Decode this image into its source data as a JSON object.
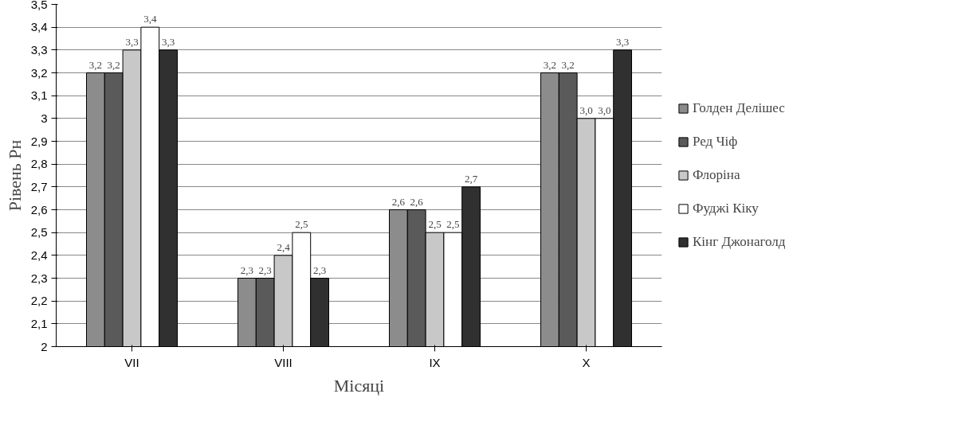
{
  "chart_data": {
    "type": "bar",
    "xlabel": "Місяці",
    "ylabel": "Рівень Рн",
    "categories": [
      "VII",
      "VIII",
      "IX",
      "X"
    ],
    "series": [
      {
        "name": "Голден Делішес",
        "color": "#8c8c8c",
        "values": [
          3.2,
          2.3,
          2.6,
          3.2
        ],
        "value_labels": [
          "3,2",
          "2,3",
          "2,6",
          "3,2"
        ]
      },
      {
        "name": "Ред Чіф",
        "color": "#5a5a5a",
        "values": [
          3.2,
          2.3,
          2.6,
          3.2
        ],
        "value_labels": [
          "3,2",
          "2,3",
          "2,6",
          "3,2"
        ]
      },
      {
        "name": "Флоріна",
        "color": "#c8c8c8",
        "values": [
          3.3,
          2.4,
          2.5,
          3.0
        ],
        "value_labels": [
          "3,3",
          "2,4",
          "2,5",
          "3,0"
        ]
      },
      {
        "name": "Фуджі Кіку",
        "color": "#ffffff",
        "values": [
          3.4,
          2.5,
          2.5,
          3.0
        ],
        "value_labels": [
          "3,4",
          "2,5",
          "2,5",
          "3,0"
        ]
      },
      {
        "name": "Кінг Джонаголд",
        "color": "#303030",
        "values": [
          3.3,
          2.3,
          2.7,
          3.3
        ],
        "value_labels": [
          "3,3",
          "2,3",
          "2,7",
          "3,3"
        ]
      }
    ],
    "ylim": [
      2,
      3.5
    ],
    "yticks": [
      2,
      {
        "value": 2.1,
        "label": "2,1"
      },
      {
        "value": 2.2,
        "label": "2,2"
      },
      {
        "value": 2.3,
        "label": "2,3"
      },
      {
        "value": 2.4,
        "label": "2,4"
      },
      {
        "value": 2.5,
        "label": "2,5"
      },
      {
        "value": 2.6,
        "label": "2,6"
      },
      {
        "value": 2.7,
        "label": "2,7"
      },
      {
        "value": 2.8,
        "label": "2,8"
      },
      {
        "value": 2.9,
        "label": "2,9"
      },
      3,
      {
        "value": 3.1,
        "label": "3,1"
      },
      {
        "value": 3.2,
        "label": "3,2"
      },
      {
        "value": 3.3,
        "label": "3,3"
      },
      {
        "value": 3.4,
        "label": "3,4"
      },
      {
        "value": 3.5,
        "label": "3,5"
      }
    ],
    "grid": "y",
    "legend": "right"
  }
}
